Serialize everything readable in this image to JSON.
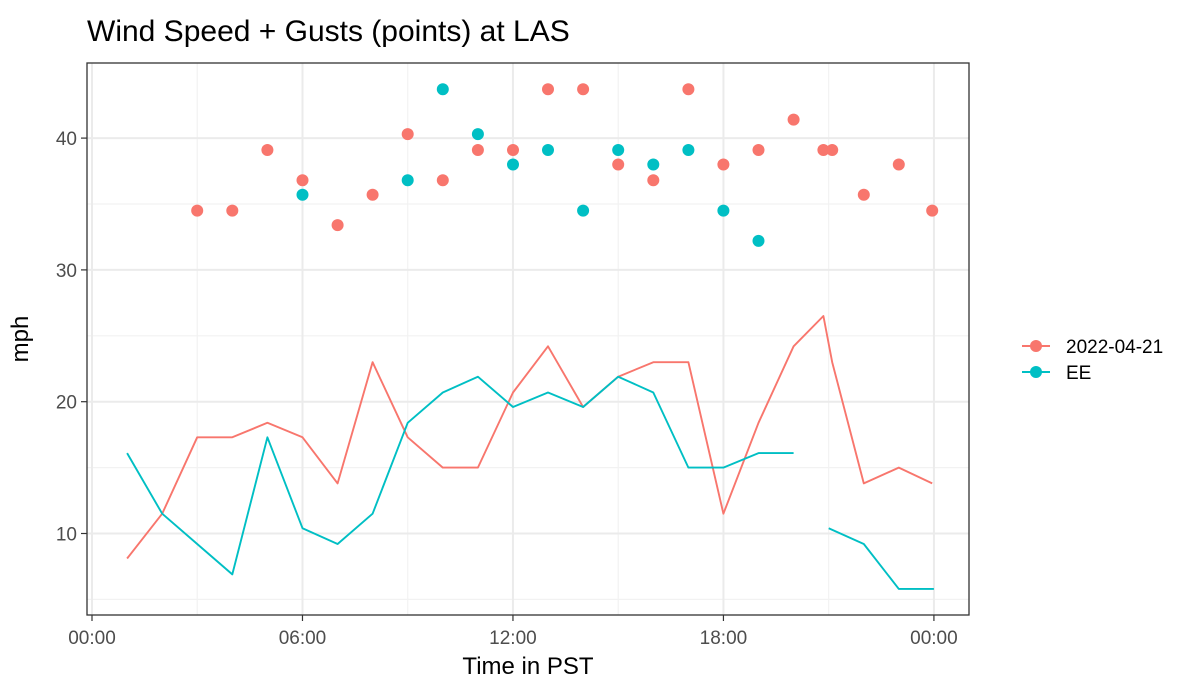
{
  "chart_data": {
    "type": "line",
    "title": "Wind Speed + Gusts (points) at LAS",
    "xlabel": "Time in PST",
    "ylabel": "mph",
    "x_unit": "hour",
    "xlim": [
      0,
      24
    ],
    "ylim": [
      5,
      45
    ],
    "x_ticks": [
      {
        "value": 0,
        "label": "00:00"
      },
      {
        "value": 6,
        "label": "06:00"
      },
      {
        "value": 12,
        "label": "12:00"
      },
      {
        "value": 18,
        "label": "18:00"
      },
      {
        "value": 24,
        "label": "00:00"
      }
    ],
    "y_ticks": [
      {
        "value": 10,
        "label": "10"
      },
      {
        "value": 20,
        "label": "20"
      },
      {
        "value": 30,
        "label": "30"
      },
      {
        "value": 40,
        "label": "40"
      }
    ],
    "grid": true,
    "legend_position": "right",
    "series": [
      {
        "name": "2022-04-21",
        "color": "#F8766D",
        "line": [
          [
            1,
            8.1
          ],
          [
            2,
            11.5
          ],
          [
            3,
            17.3
          ],
          [
            4,
            17.3
          ],
          [
            5,
            18.4
          ],
          [
            6,
            17.3
          ],
          [
            7,
            13.8
          ],
          [
            8,
            23.0
          ],
          [
            9,
            17.3
          ],
          [
            10,
            15.0
          ],
          [
            11,
            15.0
          ],
          [
            12,
            20.7
          ],
          [
            13,
            24.2
          ],
          [
            14,
            19.6
          ],
          [
            15,
            21.9
          ],
          [
            16,
            23.0
          ],
          [
            17,
            23.0
          ],
          [
            18,
            11.5
          ],
          [
            19,
            18.4
          ],
          [
            20,
            24.2
          ],
          [
            20.85,
            26.5
          ],
          [
            21.1,
            23.0
          ],
          [
            22,
            13.8
          ],
          [
            23,
            15.0
          ],
          [
            23.95,
            13.8
          ]
        ],
        "gusts": [
          [
            3,
            34.5
          ],
          [
            4,
            34.5
          ],
          [
            5,
            39.1
          ],
          [
            6,
            36.8
          ],
          [
            7,
            33.4
          ],
          [
            8,
            35.7
          ],
          [
            9,
            40.3
          ],
          [
            10,
            36.8
          ],
          [
            11,
            39.1
          ],
          [
            12,
            39.1
          ],
          [
            13,
            43.7
          ],
          [
            14,
            43.7
          ],
          [
            15,
            38.0
          ],
          [
            16,
            36.8
          ],
          [
            17,
            43.7
          ],
          [
            18,
            38.0
          ],
          [
            19,
            39.1
          ],
          [
            20,
            41.4
          ],
          [
            20.85,
            39.1
          ],
          [
            21.1,
            39.1
          ],
          [
            22,
            35.7
          ],
          [
            23,
            38.0
          ],
          [
            23.95,
            34.5
          ]
        ]
      },
      {
        "name": "EE",
        "color": "#00BFC4",
        "line": [
          [
            [
              1,
              16.1
            ],
            [
              2,
              11.5
            ],
            [
              3,
              9.2
            ],
            [
              4,
              6.9
            ],
            [
              5,
              17.3
            ],
            [
              6,
              10.4
            ],
            [
              7,
              9.2
            ],
            [
              8,
              11.5
            ],
            [
              9,
              18.4
            ],
            [
              10,
              20.7
            ],
            [
              11,
              21.9
            ],
            [
              12,
              19.6
            ],
            [
              13,
              20.7
            ],
            [
              14,
              19.6
            ],
            [
              15,
              21.9
            ],
            [
              16,
              20.7
            ],
            [
              17,
              15.0
            ],
            [
              18,
              15.0
            ],
            [
              19,
              16.1
            ],
            [
              20,
              16.1
            ]
          ],
          [
            [
              21,
              10.4
            ],
            [
              22,
              9.2
            ],
            [
              23,
              5.8
            ],
            [
              24,
              5.8
            ]
          ]
        ],
        "gusts": [
          [
            6,
            35.7
          ],
          [
            9,
            36.8
          ],
          [
            10,
            43.7
          ],
          [
            11,
            40.3
          ],
          [
            12,
            38.0
          ],
          [
            13,
            39.1
          ],
          [
            14,
            34.5
          ],
          [
            15,
            39.1
          ],
          [
            16,
            38.0
          ],
          [
            17,
            39.1
          ],
          [
            18,
            34.5
          ],
          [
            19,
            32.2
          ]
        ]
      }
    ]
  }
}
